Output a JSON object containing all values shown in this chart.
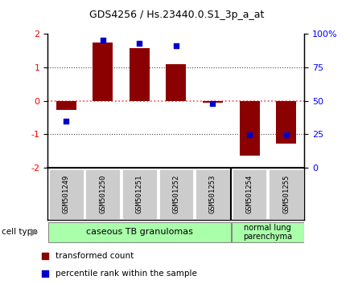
{
  "title": "GDS4256 / Hs.23440.0.S1_3p_a_at",
  "samples": [
    "GSM501249",
    "GSM501250",
    "GSM501251",
    "GSM501252",
    "GSM501253",
    "GSM501254",
    "GSM501255"
  ],
  "bar_values": [
    -0.28,
    1.75,
    1.58,
    1.1,
    -0.05,
    -1.65,
    -1.28
  ],
  "percentile_values": [
    -0.62,
    1.82,
    1.72,
    1.65,
    -0.08,
    -1.02,
    -1.02
  ],
  "bar_color": "#8B0000",
  "dot_color": "#0000CC",
  "ylim_left": [
    -2,
    2
  ],
  "ylim_right": [
    0,
    100
  ],
  "yticks_left": [
    -2,
    -1,
    0,
    1,
    2
  ],
  "yticks_right": [
    0,
    25,
    50,
    75,
    100
  ],
  "ytick_labels_right": [
    "0",
    "25",
    "50",
    "75",
    "100%"
  ],
  "group1_label": "caseous TB granulomas",
  "group1_color": "#AAFFAA",
  "group2_label": "normal lung\nparenchyma",
  "group2_color": "#AAFFAA",
  "cell_type_label": "cell type",
  "legend_bar_label": "transformed count",
  "legend_dot_label": "percentile rank within the sample",
  "zero_line_color": "#FF4444",
  "grid_color": "#444444",
  "sample_box_color": "#CCCCCC",
  "bar_width": 0.55
}
